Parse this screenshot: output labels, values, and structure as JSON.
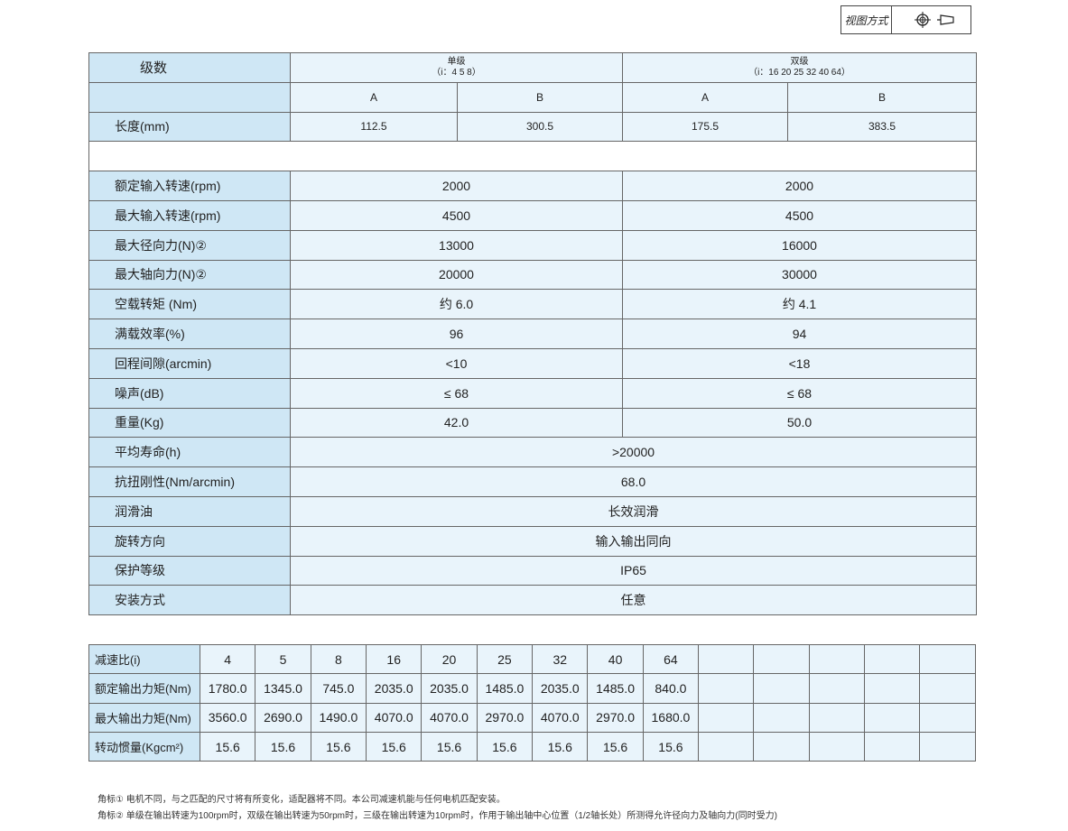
{
  "view": {
    "label": "视图方式",
    "icons": [
      "crosshair-circle-icon",
      "cone-side-icon"
    ]
  },
  "main": {
    "stage_label": "级数",
    "single": {
      "title": "单级",
      "ratios": "（i：4 5 8）"
    },
    "double": {
      "title": "双级",
      "ratios": "（i：16 20 25 32 40 64）"
    },
    "sub": [
      "A",
      "B",
      "A",
      "B"
    ],
    "length": {
      "label": "长度(mm)",
      "values": [
        "112.5",
        "300.5",
        "175.5",
        "383.5"
      ]
    },
    "rows2": [
      {
        "label": "额定输入转速(rpm)",
        "single": "2000",
        "double": "2000"
      },
      {
        "label": "最大输入转速(rpm)",
        "single": "4500",
        "double": "4500"
      },
      {
        "label": "最大径向力(N)②",
        "single": "13000",
        "double": "16000"
      },
      {
        "label": "最大轴向力(N)②",
        "single": "20000",
        "double": "30000"
      },
      {
        "label": "空载转矩 (Nm)",
        "single": "约 6.0",
        "double": "约 4.1"
      },
      {
        "label": "满载效率(%)",
        "single": "96",
        "double": "94"
      },
      {
        "label": "回程间隙(arcmin)",
        "single": "<10",
        "double": "<18"
      },
      {
        "label": "噪声(dB)",
        "single": "≤ 68",
        "double": "≤ 68"
      },
      {
        "label": "重量(Kg)",
        "single": "42.0",
        "double": "50.0"
      }
    ],
    "rows1": [
      {
        "label": "平均寿命(h)",
        "value": ">20000"
      },
      {
        "label": "抗扭刚性(Nm/arcmin)",
        "value": "68.0"
      },
      {
        "label": "润滑油",
        "value": "长效润滑"
      },
      {
        "label": "旋转方向",
        "value": "输入输出同向"
      },
      {
        "label": "保护等级",
        "value": "IP65"
      },
      {
        "label": "安装方式",
        "value": "任意"
      }
    ]
  },
  "ratio": {
    "rows": [
      {
        "label": "减速比(i)",
        "values": [
          "4",
          "5",
          "8",
          "16",
          "20",
          "25",
          "32",
          "40",
          "64"
        ]
      },
      {
        "label": "额定输出力矩(Nm)",
        "values": [
          "1780.0",
          "1345.0",
          "745.0",
          "2035.0",
          "2035.0",
          "1485.0",
          "2035.0",
          "1485.0",
          "840.0"
        ]
      },
      {
        "label": "最大输出力矩(Nm)",
        "values": [
          "3560.0",
          "2690.0",
          "1490.0",
          "4070.0",
          "4070.0",
          "2970.0",
          "4070.0",
          "2970.0",
          "1680.0"
        ]
      },
      {
        "label": "转动惯量(Kgcm²)",
        "values": [
          "15.6",
          "15.6",
          "15.6",
          "15.6",
          "15.6",
          "15.6",
          "15.6",
          "15.6",
          "15.6"
        ]
      }
    ]
  },
  "notes": [
    "角标①  电机不同，与之匹配的尺寸将有所变化，适配器将不同。本公司减速机能与任何电机匹配安装。",
    "角标②  单级在输出转速为100rpm时，双级在输出转速为50rpm时，三级在输出转速为10rpm时，作用于输出轴中心位置（1/2轴长处）所测得允许径向力及轴向力(同时受力)"
  ]
}
